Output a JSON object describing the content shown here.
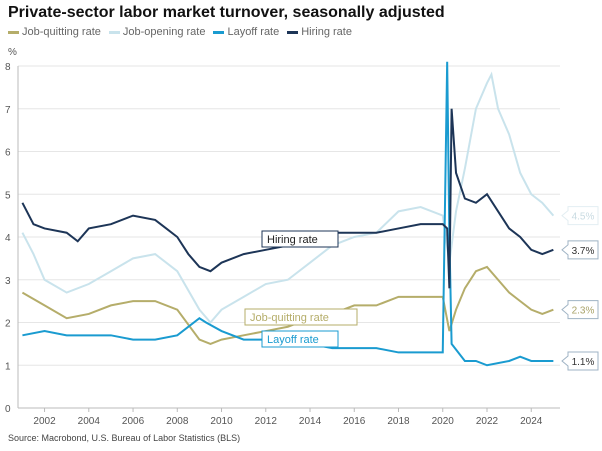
{
  "chart_data": {
    "type": "line",
    "title": "Private-sector labor market turnover, seasonally adjusted",
    "ylabel": "%",
    "source": "Source: Macrobond, U.S. Bureau of Labor Statistics (BLS)",
    "xlim": [
      2000.8,
      2025.3
    ],
    "ylim": [
      0,
      8
    ],
    "xticks": [
      "2002",
      "2004",
      "2006",
      "2008",
      "2010",
      "2012",
      "2014",
      "2016",
      "2018",
      "2020",
      "2022",
      "2024"
    ],
    "yticks": [
      "0",
      "1",
      "2",
      "3",
      "4",
      "5",
      "6",
      "7",
      "8"
    ],
    "grid": true,
    "legend_position": "top-left",
    "series": [
      {
        "name": "Job-quitting rate",
        "color": "#b5ad6a",
        "annotation": "Job-quitting rate",
        "end_label": "2.3%",
        "x": [
          2001,
          2002,
          2003,
          2004,
          2005,
          2006,
          2007,
          2008,
          2009,
          2009.5,
          2010,
          2011,
          2012,
          2013,
          2014,
          2015,
          2016,
          2017,
          2018,
          2019,
          2020,
          2020.3,
          2020.6,
          2021,
          2021.5,
          2022,
          2022.5,
          2023,
          2023.5,
          2024,
          2024.5,
          2025
        ],
        "y": [
          2.7,
          2.4,
          2.1,
          2.2,
          2.4,
          2.5,
          2.5,
          2.3,
          1.6,
          1.5,
          1.6,
          1.7,
          1.8,
          1.9,
          2.1,
          2.2,
          2.4,
          2.4,
          2.6,
          2.6,
          2.6,
          1.8,
          2.3,
          2.8,
          3.2,
          3.3,
          3.0,
          2.7,
          2.5,
          2.3,
          2.2,
          2.3
        ]
      },
      {
        "name": "Job-opening rate",
        "color": "#c9e3ec",
        "end_label": "4.5%",
        "x": [
          2001,
          2001.5,
          2002,
          2003,
          2004,
          2005,
          2006,
          2007,
          2008,
          2009,
          2009.5,
          2010,
          2011,
          2012,
          2013,
          2014,
          2015,
          2016,
          2017,
          2018,
          2019,
          2020,
          2020.3,
          2020.6,
          2021,
          2021.5,
          2022,
          2022.2,
          2022.5,
          2023,
          2023.5,
          2024,
          2024.5,
          2025
        ],
        "y": [
          4.1,
          3.6,
          3.0,
          2.7,
          2.9,
          3.2,
          3.5,
          3.6,
          3.2,
          2.3,
          2.0,
          2.3,
          2.6,
          2.9,
          3.0,
          3.4,
          3.8,
          4.0,
          4.1,
          4.6,
          4.7,
          4.5,
          3.4,
          4.6,
          5.6,
          7.0,
          7.6,
          7.8,
          7.0,
          6.4,
          5.5,
          5.0,
          4.8,
          4.5
        ]
      },
      {
        "name": "Layoff rate",
        "color": "#1a9bd0",
        "annotation": "Layoff rate",
        "end_label": "1.1%",
        "x": [
          2001,
          2002,
          2003,
          2004,
          2005,
          2006,
          2007,
          2008,
          2009,
          2009.3,
          2010,
          2011,
          2012,
          2013,
          2014,
          2015,
          2016,
          2017,
          2018,
          2019,
          2020,
          2020.2,
          2020.3,
          2020.4,
          2021,
          2021.5,
          2022,
          2023,
          2023.5,
          2024,
          2025
        ],
        "y": [
          1.7,
          1.8,
          1.7,
          1.7,
          1.7,
          1.6,
          1.6,
          1.7,
          2.1,
          2.0,
          1.8,
          1.6,
          1.6,
          1.5,
          1.5,
          1.4,
          1.4,
          1.4,
          1.3,
          1.3,
          1.3,
          8.1,
          4.0,
          1.5,
          1.1,
          1.1,
          1.0,
          1.1,
          1.2,
          1.1,
          1.1
        ]
      },
      {
        "name": "Hiring rate",
        "color": "#1d3557",
        "annotation": "Hiring rate",
        "end_label": "3.7%",
        "x": [
          2001,
          2001.5,
          2002,
          2003,
          2003.5,
          2004,
          2005,
          2006,
          2007,
          2007.5,
          2008,
          2008.5,
          2009,
          2009.5,
          2010,
          2011,
          2012,
          2013,
          2014,
          2015,
          2016,
          2017,
          2018,
          2019,
          2020,
          2020.2,
          2020.3,
          2020.4,
          2020.6,
          2021,
          2021.5,
          2022,
          2022.5,
          2023,
          2023.5,
          2024,
          2024.5,
          2025
        ],
        "y": [
          4.8,
          4.3,
          4.2,
          4.1,
          3.9,
          4.2,
          4.3,
          4.5,
          4.4,
          4.2,
          4.0,
          3.6,
          3.3,
          3.2,
          3.4,
          3.6,
          3.7,
          3.8,
          4.0,
          4.1,
          4.1,
          4.1,
          4.2,
          4.3,
          4.3,
          4.2,
          2.8,
          7.0,
          5.5,
          4.9,
          4.8,
          5.0,
          4.6,
          4.2,
          4.0,
          3.7,
          3.6,
          3.7
        ]
      }
    ]
  }
}
